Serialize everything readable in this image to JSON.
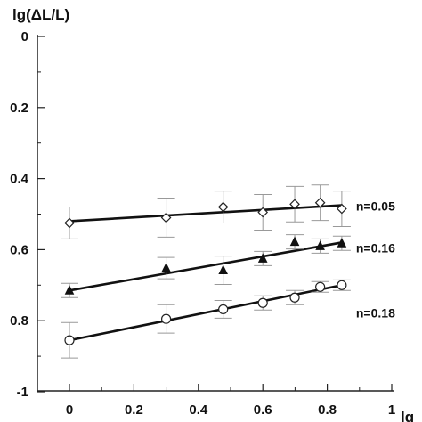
{
  "chart_data": {
    "type": "scatter",
    "ylabel": "lg(ΔL/L)",
    "xlabel": "lg",
    "xlim": [
      -0.1,
      1.0
    ],
    "ylim": [
      0,
      -1
    ],
    "y_axis_inverted": true,
    "x_ticks": [
      "0",
      "0.2",
      "0.4",
      "0.6",
      "0.8",
      "1"
    ],
    "x_tick_values": [
      0,
      0.2,
      0.4,
      0.6,
      0.8,
      1.0
    ],
    "y_ticks": [
      "0",
      "0.2",
      "0.4",
      "0.6",
      "0.8",
      "-1"
    ],
    "y_tick_values": [
      0,
      -0.2,
      -0.4,
      -0.6,
      -0.8,
      -1.0
    ],
    "grid": false,
    "series": [
      {
        "marker": "diamond",
        "x": [
          0,
          0.3,
          0.477,
          0.6,
          0.699,
          0.778,
          0.845
        ],
        "y": [
          -0.525,
          -0.51,
          -0.48,
          -0.495,
          -0.472,
          -0.468,
          -0.485
        ],
        "err": [
          0.045,
          0.055,
          0.045,
          0.05,
          0.05,
          0.05,
          0.05
        ],
        "fit": {
          "x": [
            0,
            0.845
          ],
          "y": [
            -0.52,
            -0.475
          ]
        },
        "annotation": "n=0.05"
      },
      {
        "marker": "triangle",
        "x": [
          0,
          0.3,
          0.477,
          0.6,
          0.699,
          0.778,
          0.845
        ],
        "y": [
          -0.715,
          -0.652,
          -0.658,
          -0.625,
          -0.578,
          -0.59,
          -0.582
        ],
        "err": [
          0.02,
          0.03,
          0.04,
          0.02,
          0.02,
          0.02,
          0.02
        ],
        "fit": {
          "x": [
            0,
            0.845
          ],
          "y": [
            -0.715,
            -0.58
          ]
        },
        "annotation": "n=0.16"
      },
      {
        "marker": "circle",
        "x": [
          0,
          0.3,
          0.477,
          0.6,
          0.699,
          0.778,
          0.845
        ],
        "y": [
          -0.855,
          -0.795,
          -0.768,
          -0.75,
          -0.735,
          -0.705,
          -0.7
        ],
        "err": [
          0.05,
          0.04,
          0.025,
          0.02,
          0.02,
          0.015,
          0.015
        ],
        "fit": {
          "x": [
            0,
            0.845
          ],
          "y": [
            -0.855,
            -0.7
          ]
        },
        "annotation": "n=0.18"
      }
    ]
  }
}
